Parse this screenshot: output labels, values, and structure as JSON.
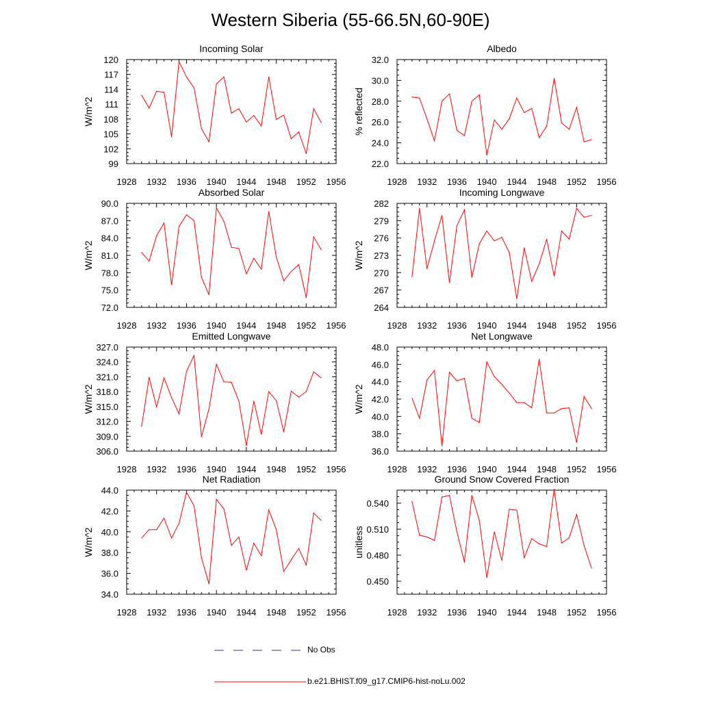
{
  "figure_title": "Western Siberia (55-66.5N,60-90E)",
  "colors": {
    "model_line": "#ff0000",
    "obs_line": "#3030a0",
    "axis": "#000000"
  },
  "legend": {
    "obs_label": "No Obs",
    "model_label": "b.e21.BHIST.f09_g17.CMIP6-hist-noLu.002"
  },
  "chart_data": [
    {
      "type": "line",
      "title": "Incoming Solar",
      "ylabel": "W/m^2",
      "xlim": [
        1928,
        1956
      ],
      "ylim": [
        99,
        120
      ],
      "xticks": [
        "1928",
        "1932",
        "1936",
        "1940",
        "1944",
        "1948",
        "1952",
        "1956"
      ],
      "yticks": [
        "99",
        "102",
        "105",
        "108",
        "111",
        "114",
        "117",
        "120"
      ],
      "x": [
        1930,
        1931,
        1932,
        1933,
        1934,
        1935,
        1936,
        1937,
        1938,
        1939,
        1940,
        1941,
        1942,
        1943,
        1944,
        1945,
        1946,
        1947,
        1948,
        1949,
        1950,
        1951,
        1952,
        1953,
        1954
      ],
      "series": [
        {
          "values": [
            112.8,
            110.2,
            113.6,
            113.4,
            104.4,
            119.6,
            116.5,
            114.3,
            106.1,
            103.4,
            115.1,
            116.5,
            109.2,
            110.1,
            107.4,
            108.7,
            106.6,
            116.5,
            107.9,
            108.8,
            104.0,
            105.4,
            101.0,
            110.1,
            107.3
          ]
        }
      ]
    },
    {
      "type": "line",
      "title": "Albedo",
      "ylabel": "% reflected",
      "xlim": [
        1928,
        1956
      ],
      "ylim": [
        22.0,
        32.0
      ],
      "xticks": [
        "1928",
        "1932",
        "1936",
        "1940",
        "1944",
        "1948",
        "1952",
        "1956"
      ],
      "yticks": [
        "22.0",
        "24.0",
        "26.0",
        "28.0",
        "30.0",
        "32.0"
      ],
      "x": [
        1930,
        1931,
        1932,
        1933,
        1934,
        1935,
        1936,
        1937,
        1938,
        1939,
        1940,
        1941,
        1942,
        1943,
        1944,
        1945,
        1946,
        1947,
        1948,
        1949,
        1950,
        1951,
        1952,
        1953,
        1954
      ],
      "series": [
        {
          "values": [
            28.4,
            28.3,
            26.3,
            24.2,
            28.0,
            28.7,
            25.2,
            24.7,
            28.0,
            28.6,
            22.8,
            26.2,
            25.3,
            26.3,
            28.3,
            26.9,
            27.3,
            24.5,
            25.6,
            30.2,
            25.9,
            25.3,
            27.4,
            24.1,
            24.3
          ]
        }
      ]
    },
    {
      "type": "line",
      "title": "Absorbed Solar",
      "ylabel": "W/m^2",
      "xlim": [
        1928,
        1956
      ],
      "ylim": [
        72.0,
        90.0
      ],
      "xticks": [
        "1928",
        "1932",
        "1936",
        "1940",
        "1944",
        "1948",
        "1952",
        "1956"
      ],
      "yticks": [
        "72.0",
        "75.0",
        "78.0",
        "81.0",
        "84.0",
        "87.0",
        "90.0"
      ],
      "x": [
        1930,
        1931,
        1932,
        1933,
        1934,
        1935,
        1936,
        1937,
        1938,
        1939,
        1940,
        1941,
        1942,
        1943,
        1944,
        1945,
        1946,
        1947,
        1948,
        1949,
        1950,
        1951,
        1952,
        1953,
        1954
      ],
      "series": [
        {
          "values": [
            81.5,
            80.0,
            84.4,
            86.6,
            75.9,
            86.0,
            88.0,
            87.0,
            77.2,
            74.2,
            89.2,
            86.9,
            82.4,
            82.2,
            77.8,
            80.5,
            78.6,
            88.6,
            80.7,
            76.6,
            78.2,
            79.4,
            73.7,
            84.2,
            82.0
          ]
        }
      ]
    },
    {
      "type": "line",
      "title": "Incoming Longwave",
      "ylabel": "W/m^2",
      "xlim": [
        1928,
        1956
      ],
      "ylim": [
        264,
        282
      ],
      "xticks": [
        "1928",
        "1932",
        "1936",
        "1940",
        "1944",
        "1948",
        "1952",
        "1956"
      ],
      "yticks": [
        "264",
        "267",
        "270",
        "273",
        "276",
        "279",
        "282"
      ],
      "x": [
        1930,
        1931,
        1932,
        1933,
        1934,
        1935,
        1936,
        1937,
        1938,
        1939,
        1940,
        1941,
        1942,
        1943,
        1944,
        1945,
        1946,
        1947,
        1948,
        1949,
        1950,
        1951,
        1952,
        1953,
        1954
      ],
      "series": [
        {
          "values": [
            269.3,
            281.1,
            270.7,
            275.5,
            279.9,
            268.3,
            278.1,
            280.9,
            269.2,
            275.0,
            277.2,
            275.5,
            276.1,
            273.5,
            265.5,
            274.3,
            268.5,
            271.5,
            275.8,
            269.4,
            277.2,
            275.8,
            281.1,
            279.6,
            279.9
          ]
        }
      ]
    },
    {
      "type": "line",
      "title": "Emitted Longwave",
      "ylabel": "W/m^2",
      "xlim": [
        1928,
        1956
      ],
      "ylim": [
        306.0,
        327.0
      ],
      "xticks": [
        "1928",
        "1932",
        "1936",
        "1940",
        "1944",
        "1948",
        "1952",
        "1956"
      ],
      "yticks": [
        "306.0",
        "309.0",
        "312.0",
        "315.0",
        "318.0",
        "321.0",
        "324.0",
        "327.0"
      ],
      "x": [
        1930,
        1931,
        1932,
        1933,
        1934,
        1935,
        1936,
        1937,
        1938,
        1939,
        1940,
        1941,
        1942,
        1943,
        1944,
        1945,
        1946,
        1947,
        1948,
        1949,
        1950,
        1951,
        1952,
        1953,
        1954
      ],
      "series": [
        {
          "values": [
            311.0,
            320.9,
            314.9,
            320.8,
            316.8,
            313.5,
            322.1,
            325.3,
            308.9,
            314.5,
            323.5,
            320.0,
            319.9,
            316.1,
            307.1,
            316.1,
            309.4,
            318.0,
            316.2,
            309.9,
            318.1,
            316.9,
            318.0,
            322.0,
            320.8
          ]
        }
      ]
    },
    {
      "type": "line",
      "title": "Net Longwave",
      "ylabel": "W/m^2",
      "xlim": [
        1928,
        1956
      ],
      "ylim": [
        36.0,
        48.0
      ],
      "xticks": [
        "1928",
        "1932",
        "1936",
        "1940",
        "1944",
        "1948",
        "1952",
        "1956"
      ],
      "yticks": [
        "36.0",
        "38.0",
        "40.0",
        "42.0",
        "44.0",
        "46.0",
        "48.0"
      ],
      "x": [
        1930,
        1931,
        1932,
        1933,
        1934,
        1935,
        1936,
        1937,
        1938,
        1939,
        1940,
        1941,
        1942,
        1943,
        1944,
        1945,
        1946,
        1947,
        1948,
        1949,
        1950,
        1951,
        1952,
        1953,
        1954
      ],
      "series": [
        {
          "values": [
            42.1,
            39.8,
            44.2,
            45.3,
            36.6,
            45.1,
            44.1,
            44.4,
            39.8,
            39.3,
            46.3,
            44.6,
            43.7,
            42.7,
            41.6,
            41.6,
            41.0,
            46.6,
            40.4,
            40.4,
            40.9,
            41.0,
            37.0,
            42.3,
            40.9
          ]
        }
      ]
    },
    {
      "type": "line",
      "title": "Net Radiation",
      "ylabel": "W/m^2",
      "xlim": [
        1928,
        1956
      ],
      "ylim": [
        34.0,
        44.0
      ],
      "xticks": [
        "1928",
        "1932",
        "1936",
        "1940",
        "1944",
        "1948",
        "1952",
        "1956"
      ],
      "yticks": [
        "34.0",
        "36.0",
        "38.0",
        "40.0",
        "42.0",
        "44.0"
      ],
      "x": [
        1930,
        1931,
        1932,
        1933,
        1934,
        1935,
        1936,
        1937,
        1938,
        1939,
        1940,
        1941,
        1942,
        1943,
        1944,
        1945,
        1946,
        1947,
        1948,
        1949,
        1950,
        1951,
        1952,
        1953,
        1954
      ],
      "series": [
        {
          "values": [
            39.4,
            40.2,
            40.2,
            41.3,
            39.4,
            40.8,
            43.8,
            42.5,
            37.5,
            35.0,
            43.1,
            42.2,
            38.7,
            39.5,
            36.3,
            38.9,
            37.7,
            42.1,
            40.2,
            36.2,
            37.3,
            38.4,
            36.8,
            41.8,
            41.1
          ]
        }
      ]
    },
    {
      "type": "line",
      "title": "Ground Snow Covered Fraction",
      "ylabel": "unitless",
      "xlim": [
        1928,
        1956
      ],
      "ylim": [
        0.435,
        0.555
      ],
      "xticks": [
        "1928",
        "1932",
        "1936",
        "1940",
        "1944",
        "1948",
        "1952",
        "1956"
      ],
      "yticks": [
        "0.450",
        "0.480",
        "0.510",
        "0.540"
      ],
      "ytick_values": [
        0.45,
        0.48,
        0.51,
        0.54
      ],
      "x": [
        1930,
        1931,
        1932,
        1933,
        1934,
        1935,
        1936,
        1937,
        1938,
        1939,
        1940,
        1941,
        1942,
        1943,
        1944,
        1945,
        1946,
        1947,
        1948,
        1949,
        1950,
        1951,
        1952,
        1953,
        1954
      ],
      "series": [
        {
          "values": [
            0.542,
            0.503,
            0.501,
            0.497,
            0.547,
            0.549,
            0.507,
            0.472,
            0.549,
            0.52,
            0.454,
            0.507,
            0.474,
            0.533,
            0.532,
            0.477,
            0.499,
            0.493,
            0.49,
            0.556,
            0.494,
            0.5,
            0.527,
            0.491,
            0.465
          ]
        }
      ]
    }
  ]
}
